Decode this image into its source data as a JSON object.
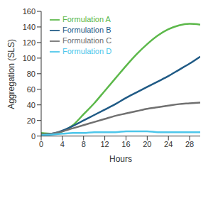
{
  "chart_data": {
    "type": "line",
    "x_label": "Hours",
    "y_label": "Aggregation (SLS)",
    "x": [
      0,
      2,
      4,
      6,
      8,
      10,
      12,
      14,
      16,
      18,
      20,
      22,
      24,
      26,
      28,
      30
    ],
    "series": [
      {
        "name": "Formulation A",
        "color": "#5cb84a",
        "values": [
          4,
          3,
          6,
          14,
          28,
          42,
          58,
          74,
          90,
          105,
          118,
          129,
          137,
          142,
          144,
          143
        ]
      },
      {
        "name": "Formulation B",
        "color": "#1f5a85",
        "values": [
          2,
          3,
          7,
          13,
          20,
          27,
          34,
          41,
          49,
          56,
          63,
          70,
          77,
          85,
          93,
          102
        ]
      },
      {
        "name": "Formulation C",
        "color": "#707070",
        "values": [
          2,
          3,
          6,
          10,
          14,
          18,
          22,
          26,
          29,
          32,
          35,
          37,
          39,
          41,
          42,
          43
        ]
      },
      {
        "name": "Formulation D",
        "color": "#4cc6ea",
        "values": [
          1,
          2,
          3,
          4,
          4,
          5,
          5,
          5,
          6,
          6,
          6,
          5,
          5,
          5,
          5,
          5
        ]
      }
    ],
    "xlim": [
      0,
      30
    ],
    "xticks": [
      0,
      4,
      8,
      12,
      16,
      20,
      24,
      28
    ],
    "ylim": [
      0,
      160
    ],
    "yticks": [
      0,
      20,
      40,
      60,
      80,
      100,
      120,
      140,
      160
    ],
    "grid": false,
    "legend": "top-left"
  }
}
